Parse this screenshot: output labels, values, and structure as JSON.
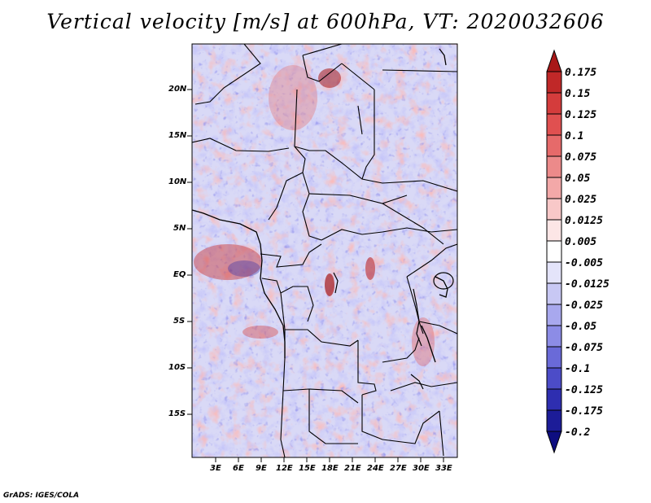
{
  "title": "Vertical velocity [m/s] at 600hPa, VT: 2020032606",
  "credit": "GrADS: IGES/COLA",
  "map": {
    "variable": "Vertical velocity",
    "units": "m/s",
    "level": "600hPa",
    "valid_time": "2020032606",
    "lat_ticks": [
      "20N",
      "15N",
      "10N",
      "5N",
      "EQ",
      "5S",
      "10S",
      "15S"
    ],
    "lon_ticks": [
      "3E",
      "6E",
      "9E",
      "12E",
      "15E",
      "18E",
      "21E",
      "24E",
      "27E",
      "30E",
      "33E"
    ]
  },
  "colorbar": {
    "labels": [
      "0.175",
      "0.15",
      "0.125",
      "0.1",
      "0.075",
      "0.05",
      "0.025",
      "0.0125",
      "0.005",
      "-0.005",
      "-0.0125",
      "-0.025",
      "-0.05",
      "-0.075",
      "-0.1",
      "-0.125",
      "-0.175",
      "-0.2"
    ],
    "colors": [
      "#a81818",
      "#c02828",
      "#d43c3c",
      "#e05050",
      "#e66a6a",
      "#ec8a8a",
      "#f3a8a8",
      "#f8c8c8",
      "#fce6e6",
      "#ffffff",
      "#e4e4fa",
      "#c8c8f4",
      "#a8a8ee",
      "#8c8ce6",
      "#6a6ad8",
      "#4c4cc8",
      "#2e2eb0",
      "#1c1c98",
      "#0e0e80"
    ]
  }
}
